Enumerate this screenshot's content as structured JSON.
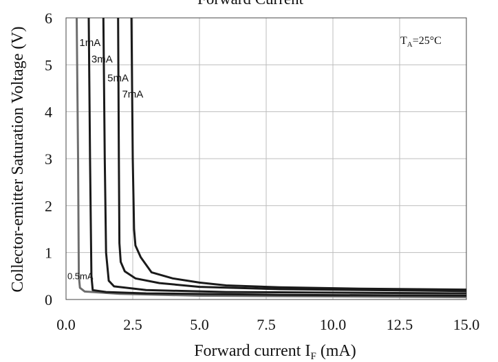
{
  "chart_data": {
    "type": "line",
    "title": "Forward Current",
    "xlabel_main": "Forward current I",
    "xlabel_sub": "F",
    "xlabel_tail": " (mA)",
    "ylabel": "Collector-emitter Saturation Voltage (V)",
    "xlim": [
      0,
      15
    ],
    "ylim": [
      0,
      6
    ],
    "x_ticks": [
      "0.0",
      "2.5",
      "5.0",
      "7.5",
      "10.0",
      "12.5",
      "15.0"
    ],
    "y_ticks": [
      "0",
      "1",
      "2",
      "3",
      "4",
      "5",
      "6"
    ],
    "grid": true,
    "annotation": {
      "main": "T",
      "sub": "A",
      "tail": "=25°C"
    },
    "series": [
      {
        "name": "0.5mA",
        "color": "#6d6d6d",
        "points": [
          [
            0.4,
            6
          ],
          [
            0.45,
            3
          ],
          [
            0.48,
            0.5
          ],
          [
            0.52,
            0.25
          ],
          [
            0.7,
            0.17
          ],
          [
            2,
            0.12
          ],
          [
            5,
            0.08
          ],
          [
            15,
            0.05
          ]
        ]
      },
      {
        "name": "1mA",
        "color": "#1a1a1a",
        "points": [
          [
            0.85,
            6
          ],
          [
            0.9,
            3
          ],
          [
            0.95,
            0.5
          ],
          [
            1.0,
            0.2
          ],
          [
            1.5,
            0.16
          ],
          [
            3,
            0.13
          ],
          [
            8,
            0.1
          ],
          [
            15,
            0.08
          ]
        ]
      },
      {
        "name": "3mA",
        "color": "#1a1a1a",
        "points": [
          [
            1.4,
            6
          ],
          [
            1.45,
            3
          ],
          [
            1.5,
            1
          ],
          [
            1.6,
            0.4
          ],
          [
            1.8,
            0.28
          ],
          [
            3,
            0.2
          ],
          [
            6,
            0.16
          ],
          [
            15,
            0.13
          ]
        ]
      },
      {
        "name": "5mA",
        "color": "#1a1a1a",
        "points": [
          [
            1.95,
            6
          ],
          [
            1.98,
            3
          ],
          [
            2.0,
            1.2
          ],
          [
            2.05,
            0.8
          ],
          [
            2.2,
            0.6
          ],
          [
            2.6,
            0.45
          ],
          [
            3.5,
            0.35
          ],
          [
            5,
            0.27
          ],
          [
            8,
            0.22
          ],
          [
            15,
            0.18
          ]
        ]
      },
      {
        "name": "7mA",
        "color": "#1a1a1a",
        "points": [
          [
            2.45,
            6
          ],
          [
            2.5,
            3
          ],
          [
            2.55,
            1.5
          ],
          [
            2.6,
            1.15
          ],
          [
            2.8,
            0.9
          ],
          [
            3.2,
            0.58
          ],
          [
            4,
            0.45
          ],
          [
            5,
            0.36
          ],
          [
            6,
            0.3
          ],
          [
            8,
            0.26
          ],
          [
            11,
            0.23
          ],
          [
            15,
            0.21
          ]
        ]
      }
    ],
    "series_labels": [
      {
        "text": "0.5mA",
        "x": 0.05,
        "y": 0.43
      },
      {
        "text": "1mA",
        "x": 0.5,
        "y": 5.4
      },
      {
        "text": "3mA",
        "x": 0.95,
        "y": 5.05
      },
      {
        "text": "5mA",
        "x": 1.55,
        "y": 4.65
      },
      {
        "text": "7mA",
        "x": 2.1,
        "y": 4.3
      }
    ]
  }
}
